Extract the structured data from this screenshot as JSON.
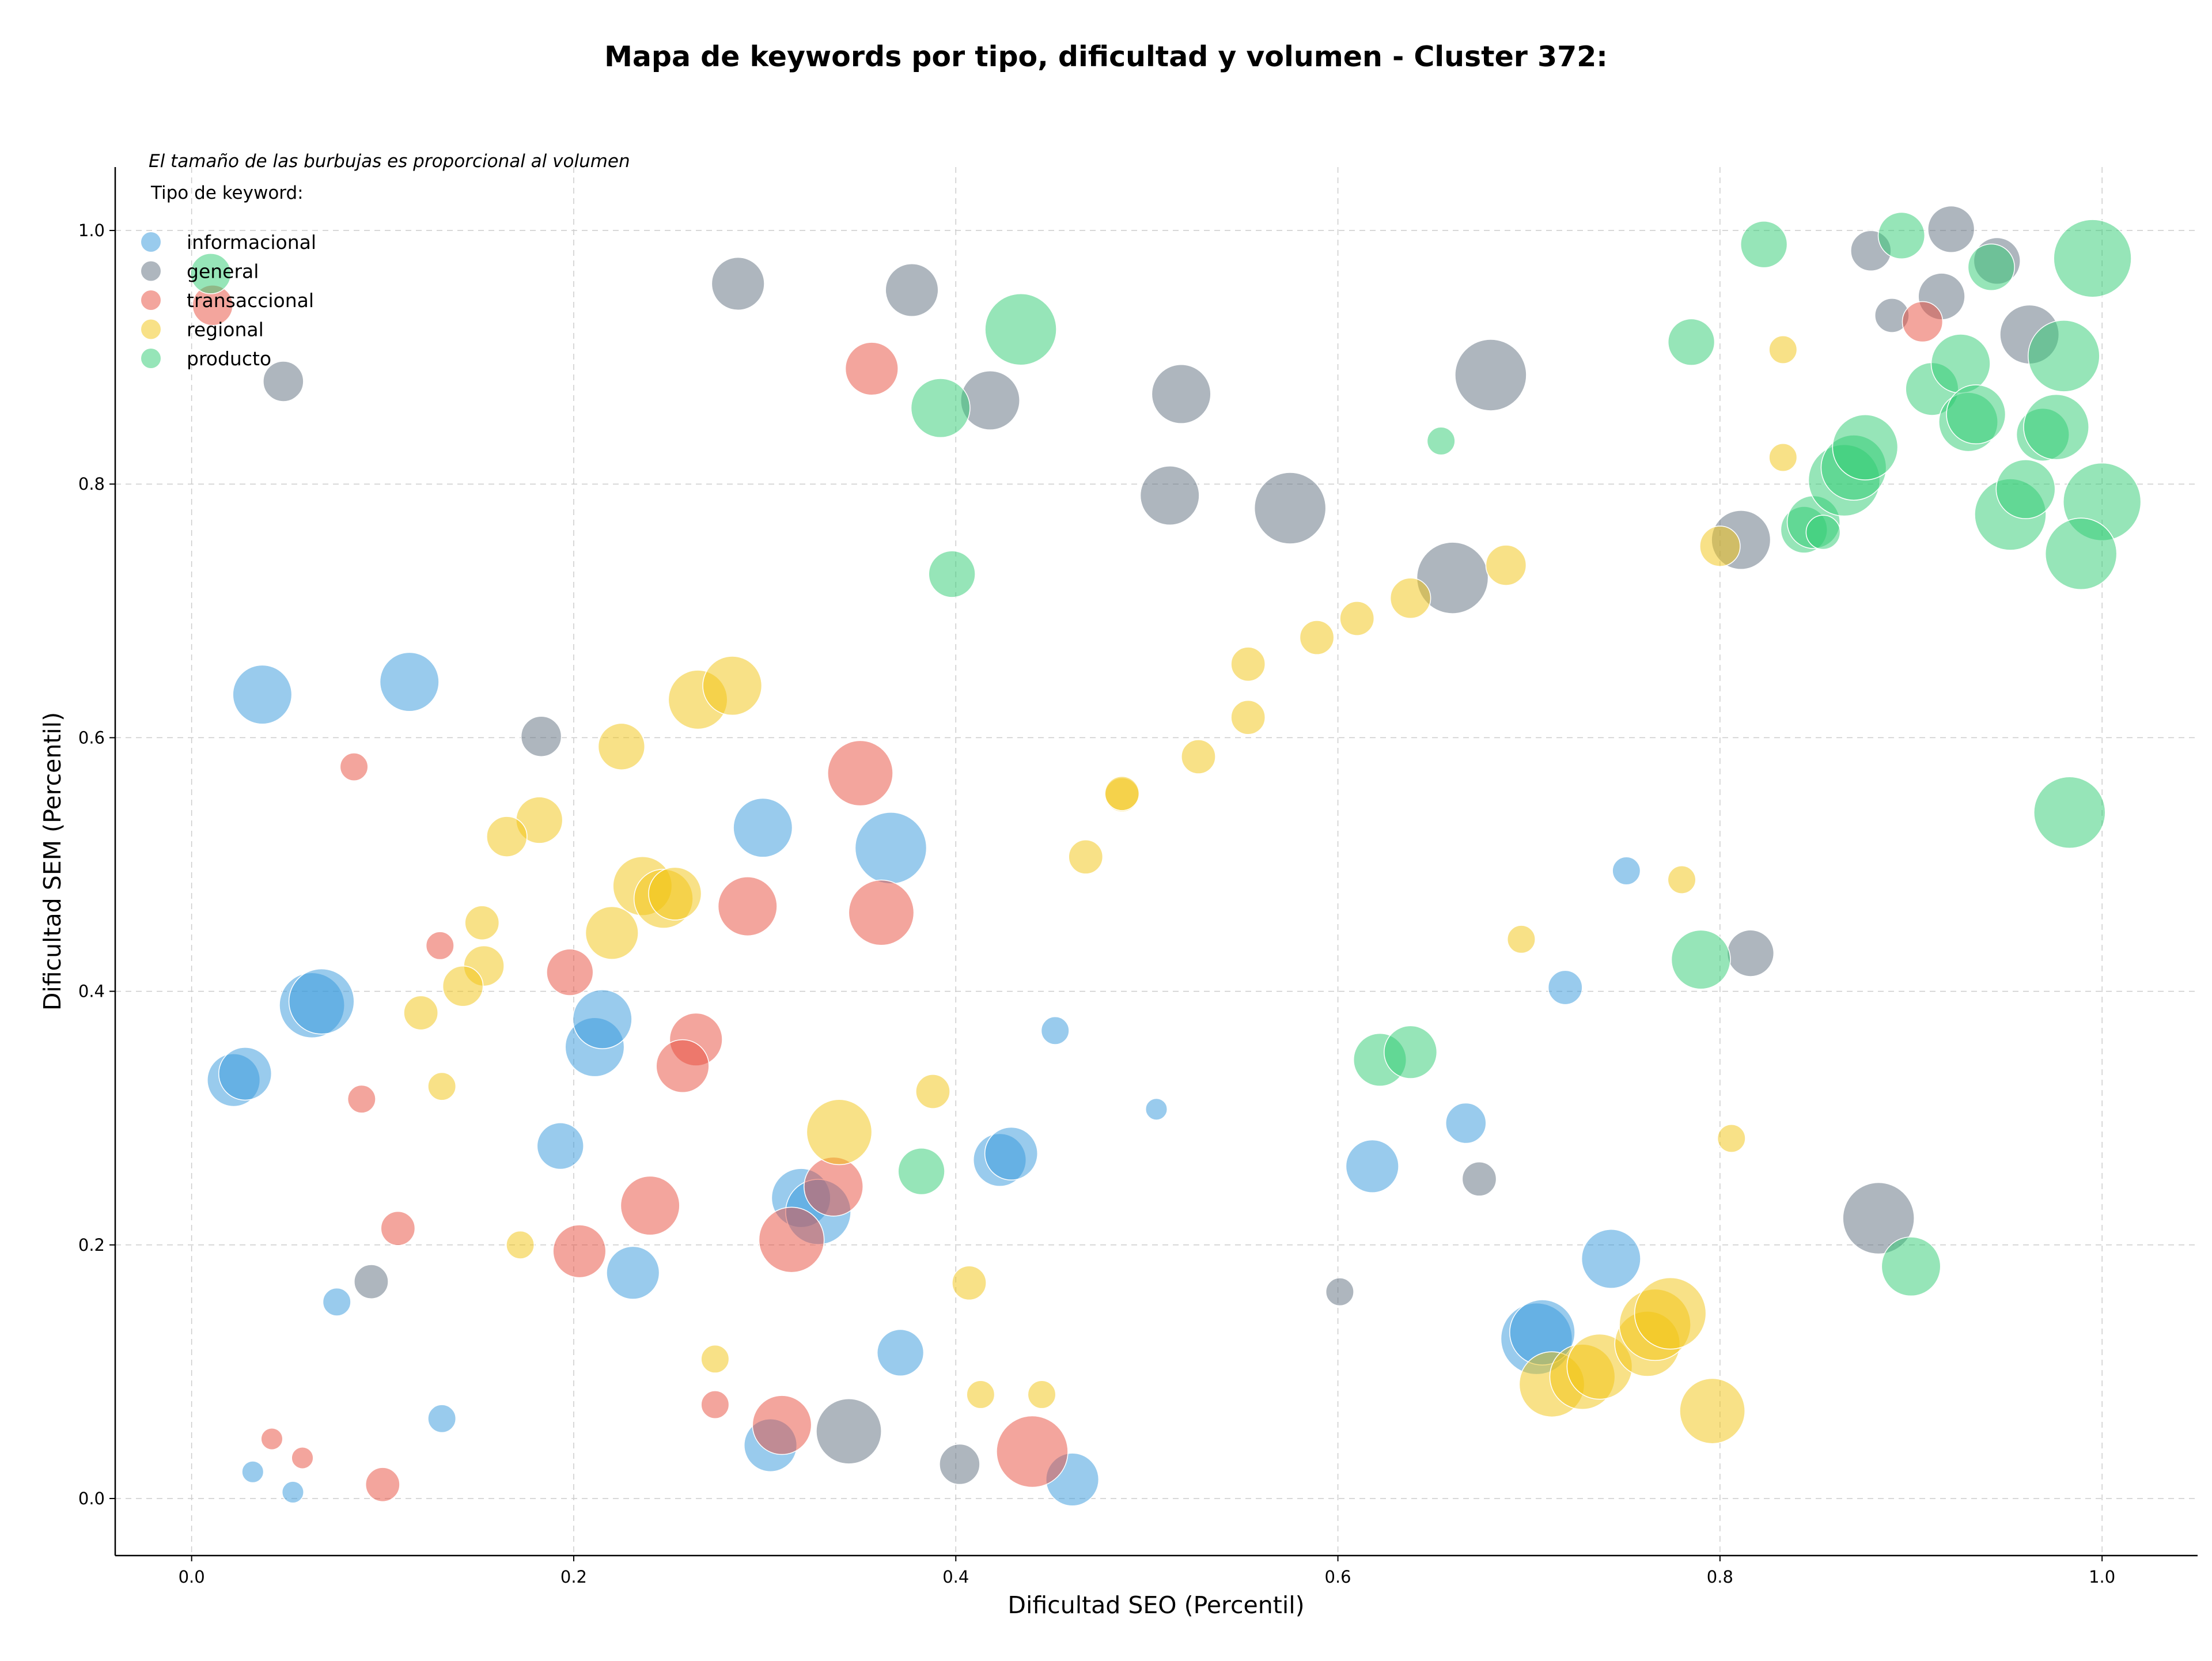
{
  "chart_data": {
    "type": "scatter",
    "title": "Mapa de keywords por tipo, dificultad y volumen - Cluster 372:",
    "xlabel": "Dificultad SEO (Percentil)",
    "ylabel": "Dificultad SEM (Percentil)",
    "xlim": [
      -0.04,
      1.05
    ],
    "ylim": [
      -0.045,
      1.05
    ],
    "xticks": [
      "0.0",
      "0.2",
      "0.4",
      "0.6",
      "0.8",
      "1.0"
    ],
    "yticks": [
      "0.0",
      "0.2",
      "0.4",
      "0.6",
      "0.8",
      "1.0"
    ],
    "grid": true,
    "annotation": "El tamaño de las burbujas es proporcional al volumen",
    "legend_title": "Tipo de keyword:",
    "legend_position": "top-left",
    "series": [
      {
        "name": "informacional",
        "color": "#3498db",
        "points": [
          [
            0.037,
            0.634,
            8
          ],
          [
            0.114,
            0.644,
            8
          ],
          [
            0.022,
            0.33,
            7
          ],
          [
            0.028,
            0.335,
            7
          ],
          [
            0.063,
            0.389,
            9
          ],
          [
            0.068,
            0.392,
            9
          ],
          [
            0.193,
            0.278,
            6
          ],
          [
            0.211,
            0.356,
            8
          ],
          [
            0.215,
            0.378,
            8
          ],
          [
            0.231,
            0.178,
            7
          ],
          [
            0.299,
            0.529,
            8
          ],
          [
            0.366,
            0.513,
            10
          ],
          [
            0.319,
            0.237,
            8
          ],
          [
            0.328,
            0.226,
            9
          ],
          [
            0.423,
            0.267,
            7
          ],
          [
            0.429,
            0.272,
            7
          ],
          [
            0.371,
            0.115,
            6
          ],
          [
            0.303,
            0.042,
            7
          ],
          [
            0.461,
            0.015,
            7
          ],
          [
            0.131,
            0.063,
            3
          ],
          [
            0.032,
            0.021,
            2
          ],
          [
            0.053,
            0.005,
            2
          ],
          [
            0.076,
            0.155,
            3
          ],
          [
            0.452,
            0.369,
            3
          ],
          [
            0.505,
            0.307,
            2
          ],
          [
            0.618,
            0.262,
            7
          ],
          [
            0.667,
            0.296,
            5
          ],
          [
            0.719,
            0.403,
            4
          ],
          [
            0.751,
            0.495,
            3
          ],
          [
            0.743,
            0.189,
            8
          ],
          [
            0.704,
            0.126,
            10
          ],
          [
            0.707,
            0.131,
            9
          ]
        ]
      },
      {
        "name": "general",
        "color": "#5d6d7e",
        "points": [
          [
            0.286,
            0.958,
            7
          ],
          [
            0.377,
            0.953,
            7
          ],
          [
            0.418,
            0.866,
            8
          ],
          [
            0.048,
            0.881,
            5
          ],
          [
            0.183,
            0.601,
            5
          ],
          [
            0.518,
            0.871,
            8
          ],
          [
            0.512,
            0.791,
            8
          ],
          [
            0.575,
            0.781,
            10
          ],
          [
            0.68,
            0.886,
            10
          ],
          [
            0.66,
            0.726,
            10
          ],
          [
            0.811,
            0.756,
            8
          ],
          [
            0.816,
            0.43,
            6
          ],
          [
            0.674,
            0.252,
            4
          ],
          [
            0.601,
            0.163,
            3
          ],
          [
            0.883,
            0.221,
            10
          ],
          [
            0.344,
            0.053,
            9
          ],
          [
            0.402,
            0.027,
            5
          ],
          [
            0.094,
            0.171,
            4
          ],
          [
            0.879,
            0.984,
            5
          ],
          [
            0.89,
            0.933,
            4
          ],
          [
            0.921,
            1.001,
            6
          ],
          [
            0.916,
            0.948,
            6
          ],
          [
            0.945,
            0.976,
            6
          ],
          [
            0.962,
            0.918,
            8
          ]
        ]
      },
      {
        "name": "transaccional",
        "color": "#e74c3c",
        "points": [
          [
            0.011,
            0.941,
            5
          ],
          [
            0.356,
            0.891,
            7
          ],
          [
            0.085,
            0.577,
            3
          ],
          [
            0.13,
            0.436,
            3
          ],
          [
            0.198,
            0.415,
            6
          ],
          [
            0.291,
            0.467,
            8
          ],
          [
            0.35,
            0.572,
            9
          ],
          [
            0.361,
            0.462,
            9
          ],
          [
            0.264,
            0.362,
            7
          ],
          [
            0.257,
            0.341,
            7
          ],
          [
            0.24,
            0.231,
            8
          ],
          [
            0.314,
            0.204,
            9
          ],
          [
            0.336,
            0.246,
            8
          ],
          [
            0.203,
            0.195,
            7
          ],
          [
            0.108,
            0.213,
            4
          ],
          [
            0.089,
            0.315,
            3
          ],
          [
            0.274,
            0.074,
            3
          ],
          [
            0.309,
            0.058,
            8
          ],
          [
            0.44,
            0.037,
            10
          ],
          [
            0.1,
            0.011,
            4
          ],
          [
            0.042,
            0.047,
            2
          ],
          [
            0.058,
            0.032,
            2
          ],
          [
            0.906,
            0.928,
            5
          ]
        ]
      },
      {
        "name": "regional",
        "color": "#f1c40f",
        "points": [
          [
            0.225,
            0.593,
            6
          ],
          [
            0.182,
            0.535,
            6
          ],
          [
            0.165,
            0.522,
            5
          ],
          [
            0.152,
            0.454,
            4
          ],
          [
            0.153,
            0.42,
            5
          ],
          [
            0.142,
            0.404,
            5
          ],
          [
            0.12,
            0.383,
            4
          ],
          [
            0.131,
            0.325,
            3
          ],
          [
            0.22,
            0.446,
            7
          ],
          [
            0.236,
            0.483,
            8
          ],
          [
            0.247,
            0.473,
            8
          ],
          [
            0.253,
            0.477,
            7
          ],
          [
            0.265,
            0.63,
            8
          ],
          [
            0.283,
            0.641,
            8
          ],
          [
            0.339,
            0.289,
            9
          ],
          [
            0.388,
            0.321,
            4
          ],
          [
            0.172,
            0.2,
            3
          ],
          [
            0.274,
            0.11,
            3
          ],
          [
            0.407,
            0.17,
            4
          ],
          [
            0.413,
            0.082,
            3
          ],
          [
            0.445,
            0.082,
            3
          ],
          [
            0.468,
            0.506,
            4
          ],
          [
            0.487,
            0.555,
            4
          ],
          [
            0.487,
            0.556,
            4
          ],
          [
            0.527,
            0.585,
            4
          ],
          [
            0.553,
            0.616,
            4
          ],
          [
            0.553,
            0.658,
            4
          ],
          [
            0.589,
            0.679,
            4
          ],
          [
            0.61,
            0.694,
            4
          ],
          [
            0.638,
            0.71,
            5
          ],
          [
            0.688,
            0.736,
            5
          ],
          [
            0.696,
            0.441,
            3
          ],
          [
            0.78,
            0.488,
            3
          ],
          [
            0.8,
            0.751,
            5
          ],
          [
            0.806,
            0.284,
            3
          ],
          [
            0.833,
            0.906,
            3
          ],
          [
            0.833,
            0.821,
            3
          ],
          [
            0.712,
            0.09,
            9
          ],
          [
            0.728,
            0.096,
            9
          ],
          [
            0.737,
            0.104,
            9
          ],
          [
            0.762,
            0.122,
            9
          ],
          [
            0.766,
            0.137,
            10
          ],
          [
            0.774,
            0.146,
            10
          ],
          [
            0.796,
            0.069,
            9
          ]
        ]
      },
      {
        "name": "producto",
        "color": "#2ecc71",
        "points": [
          [
            0.01,
            0.966,
            5
          ],
          [
            0.434,
            0.922,
            10
          ],
          [
            0.392,
            0.86,
            8
          ],
          [
            0.398,
            0.729,
            6
          ],
          [
            0.654,
            0.834,
            3
          ],
          [
            0.823,
            0.989,
            6
          ],
          [
            0.785,
            0.912,
            6
          ],
          [
            0.895,
            0.996,
            6
          ],
          [
            0.942,
            0.971,
            6
          ],
          [
            0.911,
            0.875,
            7
          ],
          [
            0.926,
            0.895,
            8
          ],
          [
            0.93,
            0.849,
            8
          ],
          [
            0.934,
            0.855,
            8
          ],
          [
            0.844,
            0.764,
            6
          ],
          [
            0.849,
            0.77,
            7
          ],
          [
            0.854,
            0.762,
            4
          ],
          [
            0.865,
            0.803,
            10
          ],
          [
            0.87,
            0.813,
            9
          ],
          [
            0.876,
            0.829,
            9
          ],
          [
            0.952,
            0.776,
            10
          ],
          [
            0.96,
            0.796,
            8
          ],
          [
            0.969,
            0.839,
            7
          ],
          [
            0.976,
            0.845,
            9
          ],
          [
            0.98,
            0.901,
            10
          ],
          [
            0.995,
            0.978,
            11
          ],
          [
            1.0,
            0.786,
            11
          ],
          [
            0.989,
            0.745,
            10
          ],
          [
            0.983,
            0.541,
            10
          ],
          [
            0.9,
            0.183,
            8
          ],
          [
            0.79,
            0.425,
            8
          ],
          [
            0.622,
            0.346,
            7
          ],
          [
            0.638,
            0.352,
            7
          ],
          [
            0.382,
            0.258,
            6
          ]
        ]
      }
    ]
  }
}
